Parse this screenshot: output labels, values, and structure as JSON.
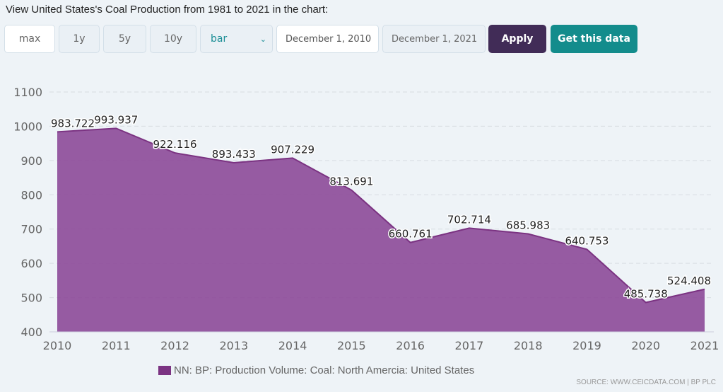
{
  "title": "View United States's Coal Production from 1981 to 2021 in the chart:",
  "controls": {
    "max": "max",
    "y1": "1y",
    "y5": "5y",
    "y10": "10y",
    "chart_type": "bar",
    "start_date": "December 1, 2010",
    "end_date": "December 1, 2021",
    "apply": "Apply",
    "get_data": "Get this data"
  },
  "colors": {
    "series": "#7b3382",
    "apply": "#412c57",
    "get_data": "#138c8c"
  },
  "chart_data": {
    "type": "area",
    "categories": [
      "2010",
      "2011",
      "2012",
      "2013",
      "2014",
      "2015",
      "2016",
      "2017",
      "2018",
      "2019",
      "2020",
      "2021"
    ],
    "series": [
      {
        "name": "NN: BP: Production Volume: Coal: North Amercia: United States",
        "values": [
          983.722,
          993.937,
          922.116,
          893.433,
          907.229,
          813.691,
          660.761,
          702.714,
          685.983,
          640.753,
          485.738,
          524.408
        ]
      }
    ],
    "data_labels": [
      "983.722",
      "993.937",
      "922.116",
      "893.433",
      "907.229",
      "813.691",
      "660.761",
      "702.714",
      "685.983",
      "640.753",
      "485.738",
      "524.408"
    ],
    "yticks": [
      "400",
      "500",
      "600",
      "700",
      "800",
      "900",
      "1000",
      "1100"
    ],
    "ylim": [
      400,
      1100
    ],
    "grid": true,
    "legend": "bottom"
  },
  "source": "SOURCE: WWW.CEICDATA.COM | BP PLC"
}
